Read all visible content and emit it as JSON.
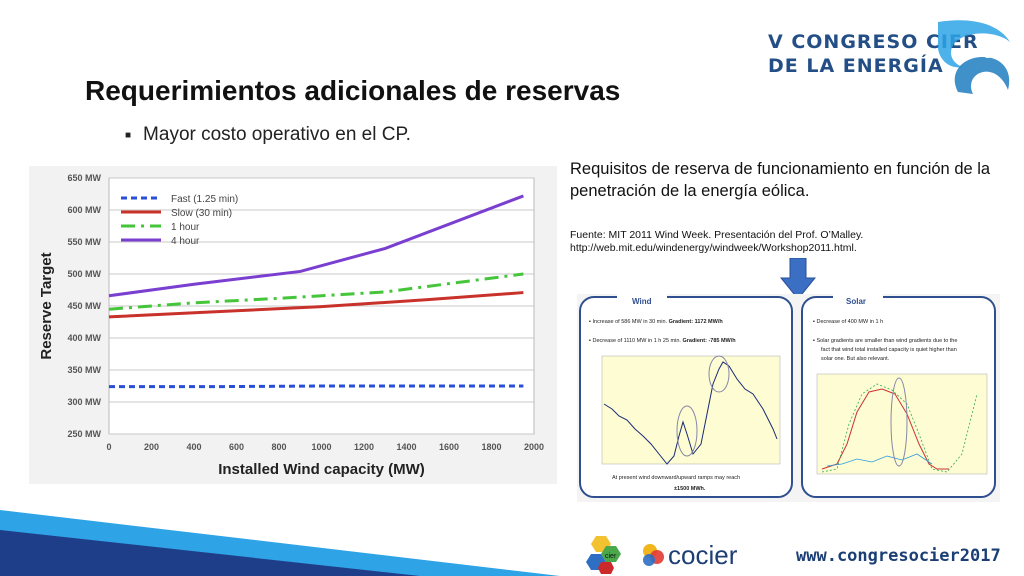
{
  "slide": {
    "title": "Requerimientos adicionales de reservas",
    "bullet": "Mayor costo operativo en el CP.",
    "caption_main": "Requisitos de reserva de funcionamiento en función de la penetración de la energía eólica.",
    "caption_source_line1": "Fuente: MIT 2011 Wind Week. Presentación del Prof. O’Malley.",
    "caption_source_line2": "http://web.mit.edu/windenergy/windweek/Workshop2011.html.",
    "logo_line1": "V CONGRESO CIER",
    "logo_line2": "DE LA ENERGÍA",
    "footer_url": "www.congresocier2017",
    "sponsor_name": "cocier",
    "sponsor_small": "cier"
  },
  "colors": {
    "title": "#111111",
    "logo_blue": "#244f86",
    "arrow": "#3a6fc4",
    "panel_border": "#2f4f8f",
    "wedge_dark": "#1f3e8a",
    "wedge_light": "#2ea3e6"
  },
  "chart_data": {
    "type": "line",
    "xlabel": "Installed Wind capacity (MW)",
    "ylabel": "Reserve Target",
    "xlim": [
      0,
      2000
    ],
    "ylim": [
      250,
      650
    ],
    "x_ticks": [
      0,
      200,
      400,
      600,
      800,
      1000,
      1200,
      1400,
      1600,
      1800,
      2000
    ],
    "y_tick_labels": [
      "650 MW",
      "600 MW",
      "550 MW",
      "500 MW",
      "450 MW",
      "400 MW",
      "350 MW",
      "300 MW",
      "250 MW"
    ],
    "y_ticks": [
      650,
      600,
      550,
      500,
      450,
      400,
      350,
      300,
      250
    ],
    "grid": true,
    "legend_position": "top-left",
    "series": [
      {
        "name": "Fast (1.25 min)",
        "color": "#2a4fd6",
        "dash": "6,4",
        "x": [
          0,
          500,
          1000,
          1500,
          1950
        ],
        "values": [
          324,
          324,
          325,
          325,
          325
        ]
      },
      {
        "name": "Slow (30 min)",
        "color": "#c8322a",
        "dash": "",
        "x": [
          0,
          500,
          1000,
          1500,
          1950
        ],
        "values": [
          433,
          441,
          449,
          460,
          471
        ]
      },
      {
        "name": "1 hour",
        "color": "#45c53a",
        "dash": "14,6,3,6",
        "x": [
          0,
          400,
          800,
          1300,
          1950
        ],
        "values": [
          445,
          455,
          462,
          472,
          500
        ]
      },
      {
        "name": "4 hour",
        "color": "#7a3fd0",
        "dash": "",
        "x": [
          0,
          400,
          900,
          1300,
          1950
        ],
        "values": [
          466,
          484,
          504,
          540,
          622
        ]
      }
    ]
  },
  "wind_panel": {
    "title": "Wind",
    "b1_text": "Increase of 586 MW in 30 min. ",
    "b1_bold": "Gradient: 1172 MW/h",
    "b2_text": "Decrease of 1110 MW in 1 h 25 min. ",
    "b2_bold": "Gradient: -785 MW/h",
    "footer1": "At present wind downward/upward ramps may reach",
    "footer2": "±1500 MWh."
  },
  "solar_panel": {
    "title": "Solar",
    "b1": "Decrease of 400 MW in 1 h",
    "b2a": "Solar gradients are smaller than wind gradients due to the",
    "b2b": "fact that wind total installed capacity is quiet higher than",
    "b2c": "solar one. But also relevant."
  }
}
